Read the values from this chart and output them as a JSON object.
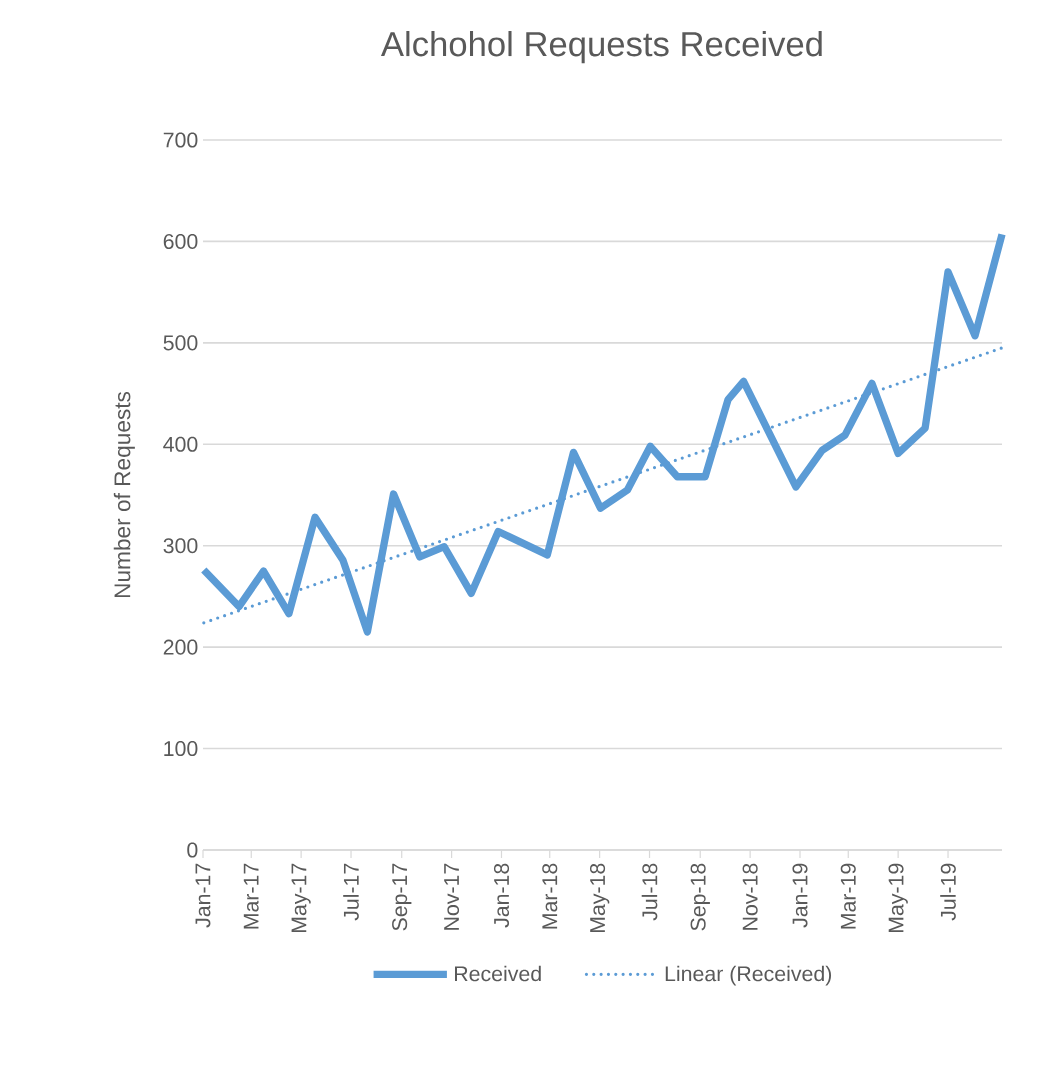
{
  "chart_data": {
    "type": "line",
    "title": "Alchohol Requests Received",
    "ylabel": "Number of Requests",
    "series": [
      {
        "name": "Received",
        "color": "#5b9bd5",
        "line_style": "solid",
        "x": [
          "2017-01-02",
          "2017-02-14",
          "2017-03-16",
          "2017-04-16",
          "2017-05-18",
          "2017-06-21",
          "2017-07-21",
          "2017-08-22",
          "2017-09-23",
          "2017-10-23",
          "2017-11-25",
          "2017-12-28",
          "2018-02-26",
          "2018-03-30",
          "2018-05-02",
          "2018-06-04",
          "2018-07-02",
          "2018-08-04",
          "2018-09-07",
          "2018-10-05",
          "2018-10-24",
          "2018-12-27",
          "2019-01-28",
          "2019-02-25",
          "2019-03-30",
          "2019-05-01",
          "2019-06-03",
          "2019-07-01",
          "2019-08-03",
          "2019-09-05"
        ],
        "values": [
          276,
          240,
          275,
          233,
          328,
          286,
          215,
          351,
          289,
          299,
          253,
          314,
          291,
          392,
          337,
          355,
          398,
          368,
          368,
          444,
          462,
          358,
          394,
          409,
          460,
          391,
          416,
          570,
          507,
          607
        ]
      },
      {
        "name": "Linear (Received)",
        "color": "#5b9bd5",
        "line_style": "dotted",
        "x": [
          "2017-01-02",
          "2019-09-05"
        ],
        "values": [
          224,
          495
        ]
      }
    ],
    "xlim": [
      "2017-01-01",
      "2019-09-05"
    ],
    "xticks": [
      {
        "value": "2017-01-01",
        "label": "Jan-17"
      },
      {
        "value": "2017-03-01",
        "label": "Mar-17"
      },
      {
        "value": "2017-05-01",
        "label": "May-17"
      },
      {
        "value": "2017-07-01",
        "label": "Jul-17"
      },
      {
        "value": "2017-09-01",
        "label": "Sep-17"
      },
      {
        "value": "2017-11-01",
        "label": "Nov-17"
      },
      {
        "value": "2018-01-01",
        "label": "Jan-18"
      },
      {
        "value": "2018-03-01",
        "label": "Mar-18"
      },
      {
        "value": "2018-05-01",
        "label": "May-18"
      },
      {
        "value": "2018-07-01",
        "label": "Jul-18"
      },
      {
        "value": "2018-09-01",
        "label": "Sep-18"
      },
      {
        "value": "2018-11-01",
        "label": "Nov-18"
      },
      {
        "value": "2019-01-01",
        "label": "Jan-19"
      },
      {
        "value": "2019-03-01",
        "label": "Mar-19"
      },
      {
        "value": "2019-05-01",
        "label": "May-19"
      },
      {
        "value": "2019-07-01",
        "label": "Jul-19"
      }
    ],
    "ylim": [
      0,
      700
    ],
    "yticks": [
      0,
      100,
      200,
      300,
      400,
      500,
      600,
      700
    ],
    "grid": "y",
    "legend": "bottom"
  }
}
